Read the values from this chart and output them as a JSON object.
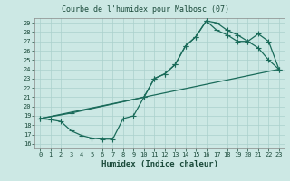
{
  "title": "Courbe de l'humidex pour Malbosc (07)",
  "xlabel": "Humidex (Indice chaleur)",
  "bg_color": "#cce8e4",
  "grid_color": "#aad0cc",
  "line_color": "#1a6b5a",
  "xlim": [
    -0.5,
    23.5
  ],
  "ylim": [
    15.5,
    29.5
  ],
  "xticks": [
    0,
    1,
    2,
    3,
    4,
    5,
    6,
    7,
    8,
    9,
    10,
    11,
    12,
    13,
    14,
    15,
    16,
    17,
    18,
    19,
    20,
    21,
    22,
    23
  ],
  "yticks": [
    16,
    17,
    18,
    19,
    20,
    21,
    22,
    23,
    24,
    25,
    26,
    27,
    28,
    29
  ],
  "line1_x": [
    0,
    1,
    2,
    3,
    4,
    5,
    6,
    7,
    8,
    9,
    10,
    11,
    12,
    13,
    14,
    15,
    16,
    17,
    18,
    19,
    20,
    21,
    22,
    23
  ],
  "line1_y": [
    18.7,
    18.6,
    18.4,
    17.4,
    16.9,
    16.6,
    16.5,
    16.5,
    18.7,
    19.0,
    21.0,
    23.0,
    23.5,
    24.5,
    26.5,
    27.5,
    29.2,
    29.0,
    28.2,
    27.7,
    27.0,
    26.3,
    25.0,
    24.0
  ],
  "line2_x": [
    0,
    23
  ],
  "line2_y": [
    18.7,
    24.0
  ],
  "line3_x": [
    0,
    3,
    10,
    11,
    12,
    13,
    14,
    15,
    16,
    17,
    18,
    19,
    20,
    21,
    22,
    23
  ],
  "line3_y": [
    18.7,
    19.3,
    21.0,
    23.0,
    23.5,
    24.5,
    26.5,
    27.5,
    29.2,
    28.2,
    27.7,
    27.0,
    27.0,
    27.8,
    27.0,
    24.0
  ]
}
